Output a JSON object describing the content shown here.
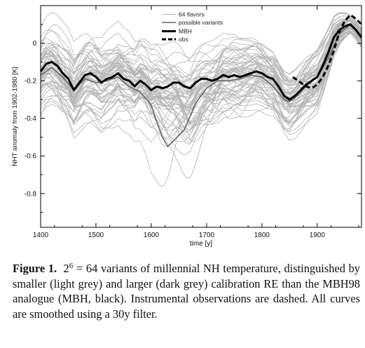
{
  "chart_data": {
    "type": "line",
    "title": "",
    "xlabel": "time [y]",
    "ylabel": "NHT anomaly from 1902-1980  [K]",
    "xlim": [
      1400,
      1980
    ],
    "ylim": [
      -0.98,
      0.2
    ],
    "xticks": [
      1400,
      1500,
      1600,
      1700,
      1800,
      1900
    ],
    "yticks": [
      0,
      -0.2,
      -0.4,
      -0.6,
      -0.8
    ],
    "ytick_labels": [
      "0",
      "-0.2",
      "-0.4",
      "-0.6",
      "-0.8"
    ],
    "grid": false,
    "legend": {
      "placement": "top-center",
      "entries": [
        {
          "label": "64 flavors",
          "style": "light-grey-thin"
        },
        {
          "label": "possible variants",
          "style": "dark-grey"
        },
        {
          "label": "MBH",
          "style": "black-thick"
        },
        {
          "label": "obs",
          "style": "black-dashed"
        }
      ]
    },
    "series": [
      {
        "name": "MBH",
        "color": "#000000",
        "x": [
          1400,
          1410,
          1420,
          1430,
          1440,
          1450,
          1460,
          1470,
          1480,
          1490,
          1500,
          1510,
          1520,
          1530,
          1540,
          1550,
          1560,
          1570,
          1580,
          1590,
          1600,
          1610,
          1620,
          1630,
          1640,
          1650,
          1660,
          1670,
          1680,
          1690,
          1700,
          1710,
          1720,
          1730,
          1740,
          1750,
          1760,
          1770,
          1780,
          1790,
          1800,
          1810,
          1820,
          1830,
          1840,
          1850,
          1860,
          1870,
          1880,
          1890,
          1900,
          1910,
          1920,
          1930,
          1940,
          1950,
          1960,
          1970,
          1980
        ],
        "y": [
          -0.15,
          -0.11,
          -0.1,
          -0.12,
          -0.16,
          -0.19,
          -0.25,
          -0.21,
          -0.17,
          -0.16,
          -0.18,
          -0.21,
          -0.19,
          -0.18,
          -0.16,
          -0.19,
          -0.2,
          -0.23,
          -0.2,
          -0.22,
          -0.25,
          -0.23,
          -0.24,
          -0.23,
          -0.21,
          -0.21,
          -0.23,
          -0.24,
          -0.21,
          -0.19,
          -0.19,
          -0.2,
          -0.19,
          -0.17,
          -0.18,
          -0.17,
          -0.18,
          -0.17,
          -0.16,
          -0.15,
          -0.16,
          -0.18,
          -0.19,
          -0.23,
          -0.28,
          -0.3,
          -0.28,
          -0.25,
          -0.22,
          -0.2,
          -0.18,
          -0.12,
          -0.05,
          0.03,
          0.07,
          0.09,
          0.1,
          0.07,
          0.03
        ]
      },
      {
        "name": "obs",
        "color": "#000000",
        "x": [
          1856,
          1870,
          1880,
          1890,
          1900,
          1910,
          1920,
          1930,
          1940,
          1950,
          1960,
          1970,
          1980
        ],
        "y": [
          -0.18,
          -0.21,
          -0.23,
          -0.24,
          -0.22,
          -0.18,
          -0.12,
          -0.04,
          0.06,
          0.12,
          0.15,
          0.13,
          0.1
        ]
      },
      {
        "name": "possible variants",
        "color": "#666666",
        "x": [
          1400,
          1420,
          1440,
          1460,
          1480,
          1500,
          1520,
          1540,
          1560,
          1580,
          1600,
          1610,
          1620,
          1630,
          1640,
          1660,
          1680,
          1700,
          1720,
          1740,
          1760,
          1780,
          1800,
          1820,
          1840,
          1850,
          1860,
          1880,
          1900,
          1920,
          1940,
          1960,
          1980
        ],
        "y": [
          -0.17,
          -0.13,
          -0.18,
          -0.25,
          -0.19,
          -0.21,
          -0.2,
          -0.18,
          -0.23,
          -0.26,
          -0.33,
          -0.42,
          -0.5,
          -0.55,
          -0.52,
          -0.46,
          -0.32,
          -0.24,
          -0.2,
          -0.2,
          -0.19,
          -0.17,
          -0.18,
          -0.23,
          -0.3,
          -0.31,
          -0.29,
          -0.23,
          -0.18,
          -0.08,
          0.05,
          0.1,
          0.04
        ]
      }
    ],
    "band": {
      "note": "64 light-grey variants",
      "color": "#b4b4b4"
    }
  },
  "caption": {
    "label": "Figure 1.",
    "base": "2",
    "exponent": "6",
    "text": " = 64 variants of millennial NH temperature, distinguished by smaller (light grey) and larger (dark grey) calibration RE than the MBH98 analogue (MBH, black). Instrumental observations are dashed. All curves are smoothed using a 30y filter."
  }
}
